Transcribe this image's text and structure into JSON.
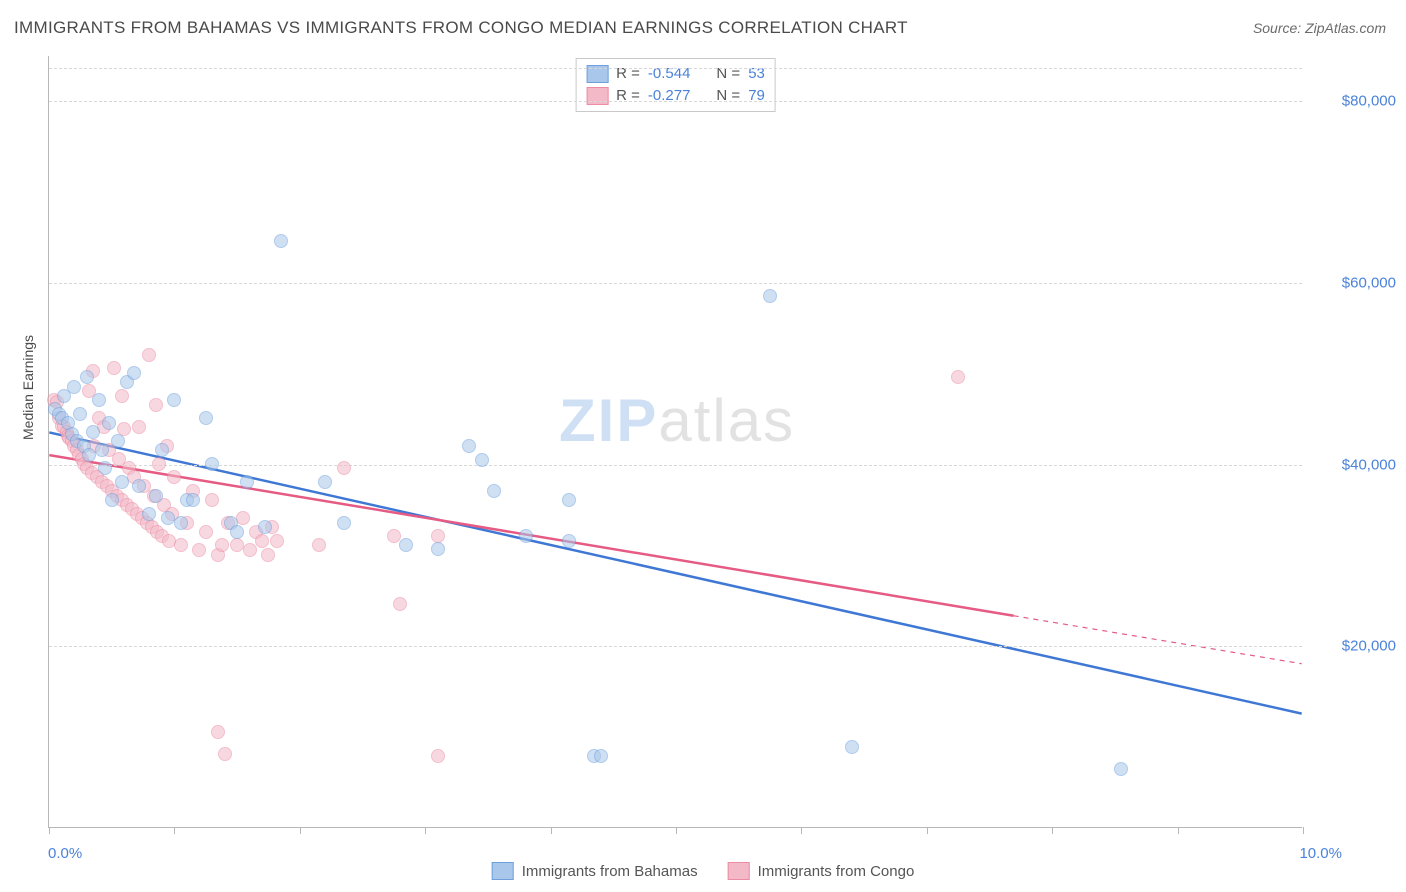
{
  "title": "IMMIGRANTS FROM BAHAMAS VS IMMIGRANTS FROM CONGO MEDIAN EARNINGS CORRELATION CHART",
  "source_label": "Source: ZipAtlas.com",
  "yaxis_label": "Median Earnings",
  "watermark_a": "ZIP",
  "watermark_b": "atlas",
  "chart": {
    "type": "scatter",
    "xlim": [
      0,
      10
    ],
    "ylim": [
      0,
      85000
    ],
    "x_tick_positions": [
      0,
      1,
      2,
      3,
      4,
      5,
      6,
      7,
      8,
      9,
      10
    ],
    "x_labels": {
      "start": "0.0%",
      "end": "10.0%"
    },
    "y_gridlines": [
      20000,
      40000,
      60000,
      80000
    ],
    "y_tick_labels": [
      "$20,000",
      "$40,000",
      "$60,000",
      "$80,000"
    ],
    "background_color": "#ffffff",
    "grid_color": "#d8d8d8",
    "axis_color": "#b7b7b7",
    "tick_label_color": "#4a82d9",
    "point_radius": 7,
    "point_opacity": 0.55,
    "series": [
      {
        "name": "Immigrants from Bahamas",
        "fill_color": "#a9c7ea",
        "stroke_color": "#6ea0de",
        "trend_color": "#3f78d4",
        "trend_width": 2.5,
        "R": "-0.544",
        "N": "53",
        "trend": {
          "x1": 0.0,
          "y1": 43500,
          "x2": 10.0,
          "y2": 12500
        },
        "trend_dashed_from_x": null,
        "points": [
          [
            0.05,
            46000
          ],
          [
            0.08,
            45500
          ],
          [
            0.1,
            45000
          ],
          [
            0.12,
            47500
          ],
          [
            0.15,
            44500
          ],
          [
            0.18,
            43300
          ],
          [
            0.2,
            48500
          ],
          [
            0.22,
            42500
          ],
          [
            0.25,
            45500
          ],
          [
            0.28,
            42000
          ],
          [
            0.3,
            49500
          ],
          [
            0.32,
            41000
          ],
          [
            0.35,
            43500
          ],
          [
            0.4,
            47000
          ],
          [
            0.42,
            41500
          ],
          [
            0.45,
            39500
          ],
          [
            0.48,
            44500
          ],
          [
            0.5,
            36000
          ],
          [
            0.55,
            42500
          ],
          [
            0.58,
            38000
          ],
          [
            0.62,
            49000
          ],
          [
            0.68,
            50000
          ],
          [
            0.72,
            37500
          ],
          [
            0.8,
            34500
          ],
          [
            0.85,
            36500
          ],
          [
            0.9,
            41500
          ],
          [
            0.95,
            34000
          ],
          [
            1.0,
            47000
          ],
          [
            1.05,
            33500
          ],
          [
            1.1,
            36000
          ],
          [
            1.15,
            36000
          ],
          [
            1.25,
            45000
          ],
          [
            1.3,
            40000
          ],
          [
            1.45,
            33500
          ],
          [
            1.5,
            32500
          ],
          [
            1.58,
            38000
          ],
          [
            1.72,
            33000
          ],
          [
            1.85,
            64500
          ],
          [
            2.2,
            38000
          ],
          [
            2.35,
            33500
          ],
          [
            2.85,
            31000
          ],
          [
            3.1,
            30600
          ],
          [
            3.35,
            42000
          ],
          [
            3.45,
            40400
          ],
          [
            3.55,
            37000
          ],
          [
            3.8,
            32000
          ],
          [
            4.15,
            36000
          ],
          [
            5.75,
            58500
          ],
          [
            4.35,
            7800
          ],
          [
            4.4,
            7800
          ],
          [
            6.4,
            8800
          ],
          [
            8.55,
            6400
          ],
          [
            4.15,
            31500
          ]
        ]
      },
      {
        "name": "Immigrants from Congo",
        "fill_color": "#f4b9c7",
        "stroke_color": "#eb8ca4",
        "trend_color": "#e55b84",
        "trend_width": 2.5,
        "R": "-0.277",
        "N": "79",
        "trend": {
          "x1": 0.0,
          "y1": 41000,
          "x2": 10.0,
          "y2": 18000
        },
        "trend_dashed_from_x": 7.7,
        "points": [
          [
            0.04,
            47000
          ],
          [
            0.06,
            46800
          ],
          [
            0.08,
            45000
          ],
          [
            0.1,
            44200
          ],
          [
            0.12,
            44000
          ],
          [
            0.14,
            43500
          ],
          [
            0.15,
            43000
          ],
          [
            0.16,
            42800
          ],
          [
            0.18,
            42500
          ],
          [
            0.2,
            42000
          ],
          [
            0.22,
            41500
          ],
          [
            0.24,
            41000
          ],
          [
            0.26,
            40500
          ],
          [
            0.28,
            40000
          ],
          [
            0.3,
            39500
          ],
          [
            0.32,
            48000
          ],
          [
            0.34,
            39000
          ],
          [
            0.36,
            42000
          ],
          [
            0.38,
            38500
          ],
          [
            0.4,
            45000
          ],
          [
            0.42,
            38000
          ],
          [
            0.44,
            44000
          ],
          [
            0.46,
            37500
          ],
          [
            0.48,
            41500
          ],
          [
            0.5,
            37000
          ],
          [
            0.52,
            50500
          ],
          [
            0.54,
            36500
          ],
          [
            0.56,
            40500
          ],
          [
            0.58,
            36000
          ],
          [
            0.6,
            43800
          ],
          [
            0.62,
            35500
          ],
          [
            0.64,
            39500
          ],
          [
            0.66,
            35000
          ],
          [
            0.68,
            38500
          ],
          [
            0.7,
            34500
          ],
          [
            0.72,
            44000
          ],
          [
            0.74,
            34000
          ],
          [
            0.76,
            37500
          ],
          [
            0.78,
            33500
          ],
          [
            0.8,
            52000
          ],
          [
            0.82,
            33000
          ],
          [
            0.84,
            36500
          ],
          [
            0.86,
            32500
          ],
          [
            0.88,
            40000
          ],
          [
            0.9,
            32000
          ],
          [
            0.92,
            35500
          ],
          [
            0.94,
            42000
          ],
          [
            0.96,
            31500
          ],
          [
            0.98,
            34500
          ],
          [
            1.0,
            38500
          ],
          [
            1.05,
            31000
          ],
          [
            1.1,
            33500
          ],
          [
            1.15,
            37000
          ],
          [
            1.2,
            30500
          ],
          [
            1.25,
            32500
          ],
          [
            1.3,
            36000
          ],
          [
            1.35,
            30000
          ],
          [
            1.38,
            31000
          ],
          [
            1.43,
            33500
          ],
          [
            1.5,
            31000
          ],
          [
            1.55,
            34000
          ],
          [
            1.6,
            30500
          ],
          [
            1.65,
            32500
          ],
          [
            1.7,
            31500
          ],
          [
            1.75,
            30000
          ],
          [
            1.78,
            33000
          ],
          [
            1.82,
            31500
          ],
          [
            2.15,
            31000
          ],
          [
            2.35,
            39500
          ],
          [
            2.75,
            32000
          ],
          [
            2.8,
            24500
          ],
          [
            3.1,
            7800
          ],
          [
            3.1,
            32000
          ],
          [
            1.35,
            10500
          ],
          [
            1.4,
            8000
          ],
          [
            0.85,
            46500
          ],
          [
            7.25,
            49500
          ],
          [
            0.58,
            47500
          ],
          [
            0.35,
            50200
          ]
        ]
      }
    ]
  },
  "legend": {
    "rows": [
      {
        "swatch_fill": "#a9c7ea",
        "swatch_stroke": "#6ea0de",
        "r_label": "R =",
        "r_val": "-0.544",
        "n_label": "N =",
        "n_val": "53"
      },
      {
        "swatch_fill": "#f4b9c7",
        "swatch_stroke": "#eb8ca4",
        "r_label": "R =",
        "r_val": "-0.277",
        "n_label": "N =",
        "n_val": "79"
      }
    ]
  },
  "bottom_legend": [
    {
      "swatch_fill": "#a9c7ea",
      "swatch_stroke": "#6ea0de",
      "label": "Immigrants from Bahamas"
    },
    {
      "swatch_fill": "#f4b9c7",
      "swatch_stroke": "#eb8ca4",
      "label": "Immigrants from Congo"
    }
  ]
}
